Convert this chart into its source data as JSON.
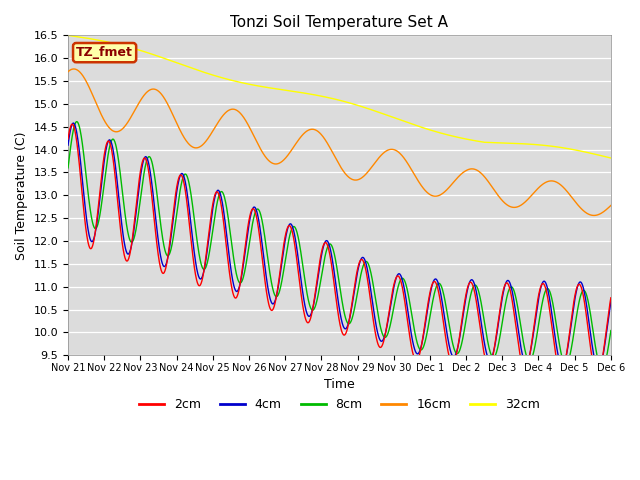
{
  "title": "Tonzi Soil Temperature Set A",
  "xlabel": "Time",
  "ylabel": "Soil Temperature (C)",
  "ylim": [
    9.5,
    16.5
  ],
  "yticks": [
    9.5,
    10.0,
    10.5,
    11.0,
    11.5,
    12.0,
    12.5,
    13.0,
    13.5,
    14.0,
    14.5,
    15.0,
    15.5,
    16.0,
    16.5
  ],
  "xtick_labels": [
    "Nov 21",
    "Nov 22",
    "Nov 23",
    "Nov 24",
    "Nov 25",
    "Nov 26",
    "Nov 27",
    "Nov 28",
    "Nov 29",
    "Nov 30",
    "Dec 1",
    "Dec 2",
    "Dec 3",
    "Dec 4",
    "Dec 5",
    "Dec 6"
  ],
  "legend_items": [
    "2cm",
    "4cm",
    "8cm",
    "16cm",
    "32cm"
  ],
  "line_colors": [
    "#ff0000",
    "#0000cc",
    "#00bb00",
    "#ff8800",
    "#ffff00"
  ],
  "background_color": "#e8e8e8",
  "plot_bg": "#dcdcdc",
  "label_text": "TZ_fmet",
  "label_bg": "#ffffaa",
  "label_border": "#cc3300",
  "n_points": 1440,
  "days": 15
}
